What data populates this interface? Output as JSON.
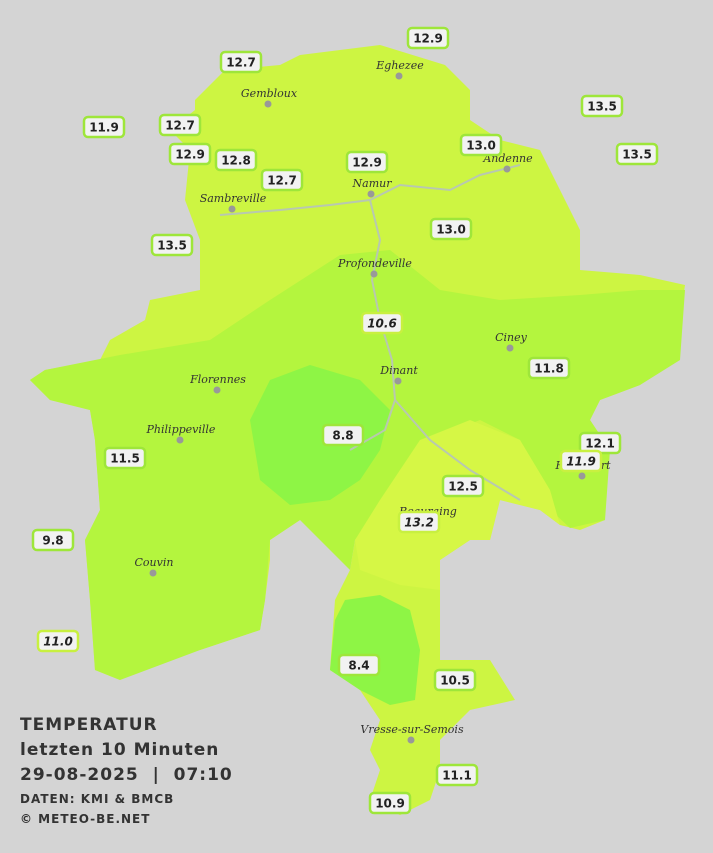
{
  "title": {
    "line1": "TEMPERATUR",
    "line2": "letzten 10 Minuten",
    "line3": "29-08-2025  |  07:10",
    "source": "DATEN: KMI & BMCB",
    "copyright": "© METEO-BE.NET"
  },
  "cities": [
    {
      "name": "Eghezee"
    },
    {
      "name": "Gembloux"
    },
    {
      "name": "Andenne"
    },
    {
      "name": "Namur"
    },
    {
      "name": "Sambreville"
    },
    {
      "name": "Profondeville"
    },
    {
      "name": "Ciney"
    },
    {
      "name": "Dinant"
    },
    {
      "name": "Florennes"
    },
    {
      "name": "Philippeville"
    },
    {
      "name": "Rochefort"
    },
    {
      "name": "Beauraing"
    },
    {
      "name": "Couvin"
    },
    {
      "name": "Vresse-sur-Semois"
    }
  ],
  "stations": [
    {
      "label": "12.9"
    },
    {
      "label": "12.7"
    },
    {
      "label": "11.9"
    },
    {
      "label": "12.7"
    },
    {
      "label": "12.9"
    },
    {
      "label": "12.8"
    },
    {
      "label": "12.7"
    },
    {
      "label": "12.9"
    },
    {
      "label": "13.0"
    },
    {
      "label": "13.5"
    },
    {
      "label": "13.5"
    },
    {
      "label": "13.0"
    },
    {
      "label": "13.5"
    },
    {
      "label": "10.6"
    },
    {
      "label": "11.8"
    },
    {
      "label": "8.8"
    },
    {
      "label": "11.5"
    },
    {
      "label": "12.1"
    },
    {
      "label": "11.9"
    },
    {
      "label": "12.5"
    },
    {
      "label": "13.2"
    },
    {
      "label": "9.8"
    },
    {
      "label": "11.0"
    },
    {
      "label": "8.4"
    },
    {
      "label": "10.5"
    },
    {
      "label": "11.1"
    },
    {
      "label": "10.9"
    }
  ]
}
